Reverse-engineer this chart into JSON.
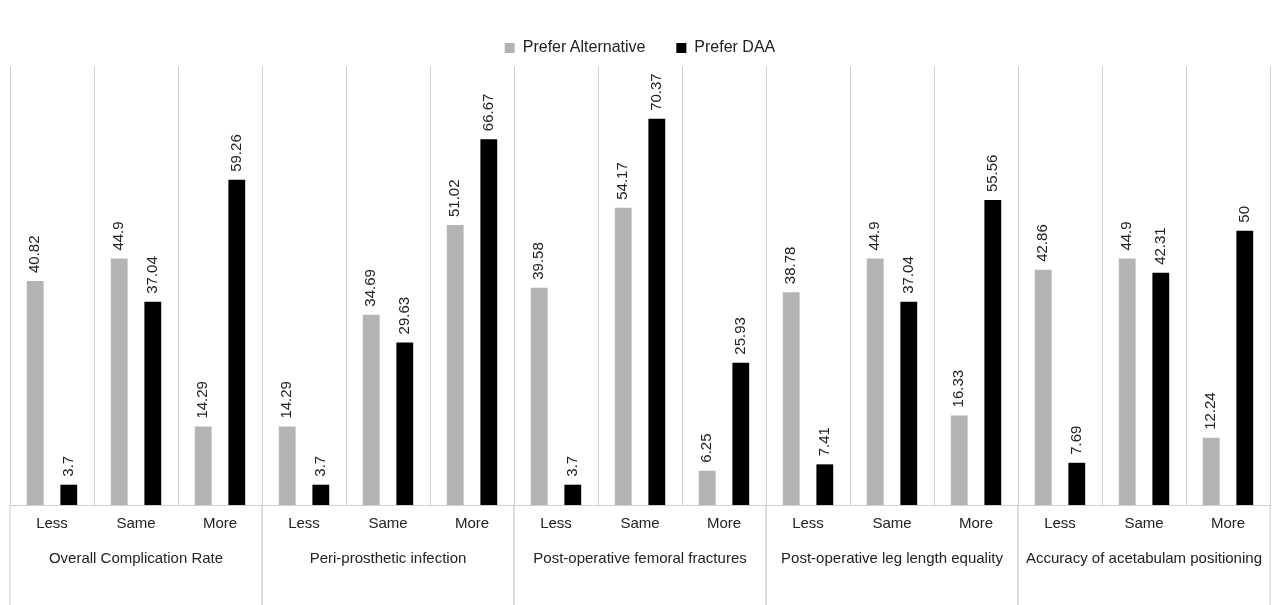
{
  "chart_data": {
    "type": "bar",
    "categories": [
      "Less",
      "Same",
      "More",
      "Less",
      "Same",
      "More",
      "Less",
      "Same",
      "More",
      "Less",
      "Same",
      "More",
      "Less",
      "Same",
      "More"
    ],
    "series": [
      {
        "name": "Prefer Alternative",
        "color": "#b3b3b3",
        "values": [
          40.82,
          44.9,
          14.29,
          14.29,
          34.69,
          51.02,
          39.58,
          54.17,
          6.25,
          38.78,
          44.9,
          16.33,
          42.86,
          44.9,
          12.24
        ]
      },
      {
        "name": "Prefer DAA",
        "color": "#000000",
        "values": [
          3.7,
          37.04,
          59.26,
          3.7,
          29.63,
          66.67,
          3.7,
          70.37,
          25.93,
          7.41,
          37.04,
          55.56,
          7.69,
          42.31,
          50
        ]
      }
    ],
    "annotations": [
      "Overall Complication Rate",
      "Peri-prosthetic infection",
      "Post-operative femoral fractures",
      "Post-operative leg length equality",
      "Accuracy of acetabulam positioning"
    ],
    "data_labels": true,
    "grid": "x",
    "legend": "top",
    "tick_labels": "x"
  }
}
